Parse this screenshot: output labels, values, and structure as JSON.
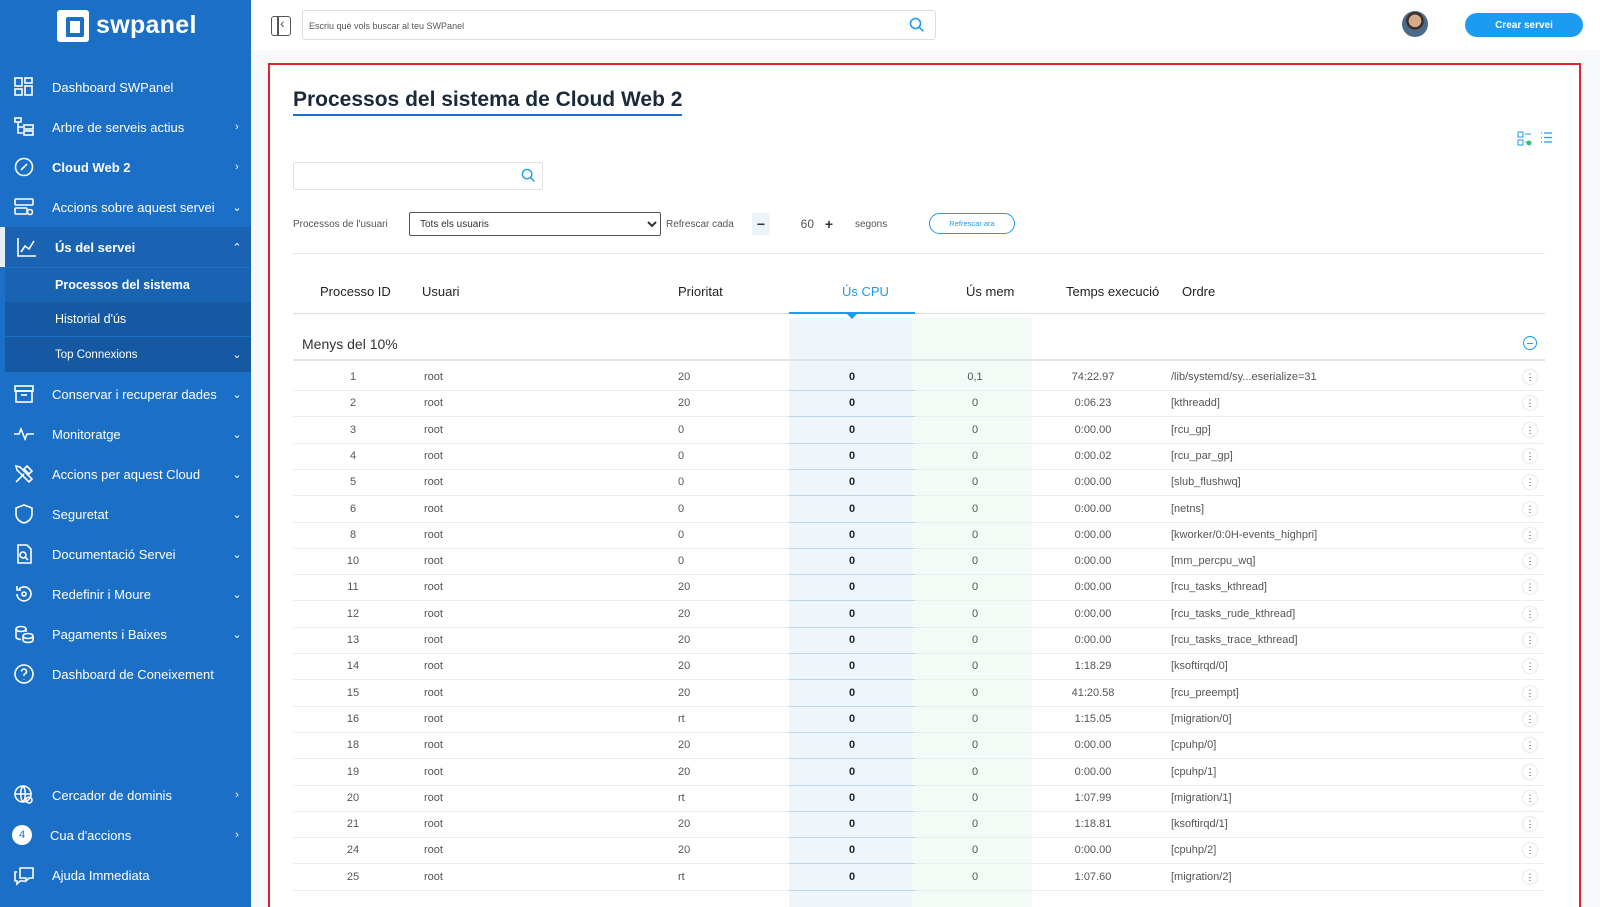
{
  "brand": {
    "name": "swpanel"
  },
  "sidebar": {
    "items": [
      {
        "label": "Dashboard SWPanel",
        "icon": "dashboard-icon",
        "chevron": ""
      },
      {
        "label": "Arbre de serveis actius",
        "icon": "tree-icon",
        "chevron": "›"
      },
      {
        "label": "Cloud Web 2",
        "icon": "cloud-service-icon",
        "chevron": "›"
      },
      {
        "label": "Accions sobre aquest servei",
        "icon": "server-actions-icon",
        "chevron": "⌄"
      },
      {
        "label": "Ús del servei",
        "icon": "usage-chart-icon",
        "chevron": "⌃"
      },
      {
        "label": "Conservar i recuperar dades",
        "icon": "archive-icon",
        "chevron": "⌄"
      },
      {
        "label": "Monitoratge",
        "icon": "pulse-icon",
        "chevron": "⌄"
      },
      {
        "label": "Accions per aquest Cloud",
        "icon": "tools-icon",
        "chevron": "⌄"
      },
      {
        "label": "Seguretat",
        "icon": "shield-icon",
        "chevron": "⌄"
      },
      {
        "label": "Documentació Servei",
        "icon": "document-icon",
        "chevron": "⌄"
      },
      {
        "label": "Redefinir i Moure",
        "icon": "redefine-icon",
        "chevron": "⌄"
      },
      {
        "label": "Pagaments i Baixes",
        "icon": "payments-icon",
        "chevron": "⌄"
      },
      {
        "label": "Dashboard de Coneixement",
        "icon": "help-circle-icon",
        "chevron": ""
      }
    ],
    "sub_items": [
      {
        "label": "Processos del sistema"
      },
      {
        "label": "Historial d'ús"
      },
      {
        "label": "Top Connexions",
        "chevron": "⌄"
      }
    ],
    "bottom": {
      "domains": "Cercador de dominis",
      "queue": "Cua d'accions",
      "queue_count": "4",
      "help": "Ajuda Immediata"
    }
  },
  "topbar": {
    "search_placeholder": "Escriu què vols buscar al teu SWPanel",
    "create_label": "Crear servei"
  },
  "page": {
    "title": "Processos del sistema de Cloud Web 2",
    "filter_placeholder": "",
    "user_label": "Processos de l'usuari",
    "user_selected": "Tots els usuaris",
    "refresh_label": "Refrescar cada",
    "refresh_value": "60",
    "seconds_label": "segons",
    "refresh_now": "Refrescar ara"
  },
  "table": {
    "headers": {
      "pid": "Processo ID",
      "user": "Usuari",
      "priority": "Prioritat",
      "cpu": "Ús CPU",
      "mem": "Ús mem",
      "time": "Temps execució",
      "cmd": "Ordre"
    },
    "group_label": "Menys del 10%",
    "rows": [
      {
        "pid": "1",
        "user": "root",
        "prio": "20",
        "cpu": "0",
        "mem": "0,1",
        "time": "74:22.97",
        "cmd": "/lib/systemd/sy...eserialize=31"
      },
      {
        "pid": "2",
        "user": "root",
        "prio": "20",
        "cpu": "0",
        "mem": "0",
        "time": "0:06.23",
        "cmd": "[kthreadd]"
      },
      {
        "pid": "3",
        "user": "root",
        "prio": "0",
        "cpu": "0",
        "mem": "0",
        "time": "0:00.00",
        "cmd": "[rcu_gp]"
      },
      {
        "pid": "4",
        "user": "root",
        "prio": "0",
        "cpu": "0",
        "mem": "0",
        "time": "0:00.02",
        "cmd": "[rcu_par_gp]"
      },
      {
        "pid": "5",
        "user": "root",
        "prio": "0",
        "cpu": "0",
        "mem": "0",
        "time": "0:00.00",
        "cmd": "[slub_flushwq]"
      },
      {
        "pid": "6",
        "user": "root",
        "prio": "0",
        "cpu": "0",
        "mem": "0",
        "time": "0:00.00",
        "cmd": "[netns]"
      },
      {
        "pid": "8",
        "user": "root",
        "prio": "0",
        "cpu": "0",
        "mem": "0",
        "time": "0:00.00",
        "cmd": "[kworker/0:0H-events_highpri]"
      },
      {
        "pid": "10",
        "user": "root",
        "prio": "0",
        "cpu": "0",
        "mem": "0",
        "time": "0:00.00",
        "cmd": "[mm_percpu_wq]"
      },
      {
        "pid": "11",
        "user": "root",
        "prio": "20",
        "cpu": "0",
        "mem": "0",
        "time": "0:00.00",
        "cmd": "[rcu_tasks_kthread]"
      },
      {
        "pid": "12",
        "user": "root",
        "prio": "20",
        "cpu": "0",
        "mem": "0",
        "time": "0:00.00",
        "cmd": "[rcu_tasks_rude_kthread]"
      },
      {
        "pid": "13",
        "user": "root",
        "prio": "20",
        "cpu": "0",
        "mem": "0",
        "time": "0:00.00",
        "cmd": "[rcu_tasks_trace_kthread]"
      },
      {
        "pid": "14",
        "user": "root",
        "prio": "20",
        "cpu": "0",
        "mem": "0",
        "time": "1:18.29",
        "cmd": "[ksoftirqd/0]"
      },
      {
        "pid": "15",
        "user": "root",
        "prio": "20",
        "cpu": "0",
        "mem": "0",
        "time": "41:20.58",
        "cmd": "[rcu_preempt]"
      },
      {
        "pid": "16",
        "user": "root",
        "prio": "rt",
        "cpu": "0",
        "mem": "0",
        "time": "1:15.05",
        "cmd": "[migration/0]"
      },
      {
        "pid": "18",
        "user": "root",
        "prio": "20",
        "cpu": "0",
        "mem": "0",
        "time": "0:00.00",
        "cmd": "[cpuhp/0]"
      },
      {
        "pid": "19",
        "user": "root",
        "prio": "20",
        "cpu": "0",
        "mem": "0",
        "time": "0:00.00",
        "cmd": "[cpuhp/1]"
      },
      {
        "pid": "20",
        "user": "root",
        "prio": "rt",
        "cpu": "0",
        "mem": "0",
        "time": "1:07.99",
        "cmd": "[migration/1]"
      },
      {
        "pid": "21",
        "user": "root",
        "prio": "20",
        "cpu": "0",
        "mem": "0",
        "time": "1:18.81",
        "cmd": "[ksoftirqd/1]"
      },
      {
        "pid": "24",
        "user": "root",
        "prio": "20",
        "cpu": "0",
        "mem": "0",
        "time": "0:00.00",
        "cmd": "[cpuhp/2]"
      },
      {
        "pid": "25",
        "user": "root",
        "prio": "rt",
        "cpu": "0",
        "mem": "0",
        "time": "1:07.60",
        "cmd": "[migration/2]"
      }
    ]
  },
  "colors": {
    "sidebar": "#1c6fc6",
    "accent": "#1b9cf0",
    "highlight_border": "#e0232e"
  }
}
